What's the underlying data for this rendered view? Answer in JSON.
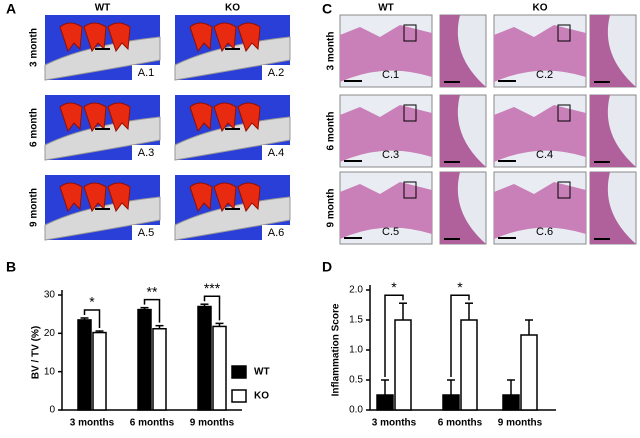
{
  "panel_a": {
    "label": "A",
    "columns": [
      "WT",
      "KO"
    ],
    "rows": [
      "3 month",
      "6 month",
      "9 month"
    ],
    "tiles": [
      "A.1",
      "A.2",
      "A.3",
      "A.4",
      "A.5",
      "A.6"
    ]
  },
  "panel_c": {
    "label": "C",
    "columns": [
      "WT",
      "KO"
    ],
    "rows": [
      "3 month",
      "6 month",
      "9 month"
    ],
    "tiles": [
      "C.1",
      "C.2",
      "C.3",
      "C.4",
      "C.5",
      "C.6"
    ]
  },
  "chart_data": [
    {
      "type": "bar",
      "label": "B",
      "y_label": "BV / TV (%)",
      "categories": [
        "3 months",
        "6 months",
        "9 months"
      ],
      "series": [
        {
          "name": "WT",
          "color": "#000000",
          "values": [
            23.5,
            26.2,
            27.0
          ],
          "errors": [
            0.5,
            0.5,
            0.6
          ]
        },
        {
          "name": "KO",
          "color": "#ffffff",
          "values": [
            20.2,
            21.2,
            21.8
          ],
          "errors": [
            0.4,
            0.8,
            0.8
          ]
        }
      ],
      "significance": [
        "*",
        "**",
        "***"
      ],
      "ylim": [
        0,
        30
      ],
      "yticks": [
        0,
        10,
        20,
        30
      ],
      "legend": "right"
    },
    {
      "type": "bar",
      "label": "D",
      "y_label": "Inflammation Score",
      "categories": [
        "3 months",
        "6 months",
        "9 months"
      ],
      "series": [
        {
          "name": "WT",
          "color": "#000000",
          "values": [
            0.25,
            0.25,
            0.25
          ],
          "errors": [
            0.25,
            0.25,
            0.25
          ]
        },
        {
          "name": "KO",
          "color": "#ffffff",
          "values": [
            1.5,
            1.5,
            1.25
          ],
          "errors": [
            0.28,
            0.28,
            0.25
          ]
        }
      ],
      "significance": [
        "*",
        "*",
        null
      ],
      "ylim": [
        0,
        2.0
      ],
      "yticks": [
        {
          "value": 0,
          "label": "0.0"
        },
        0.5,
        {
          "value": 1,
          "label": "1.0"
        },
        1.5,
        {
          "value": 2,
          "label": "2.0"
        }
      ]
    }
  ]
}
